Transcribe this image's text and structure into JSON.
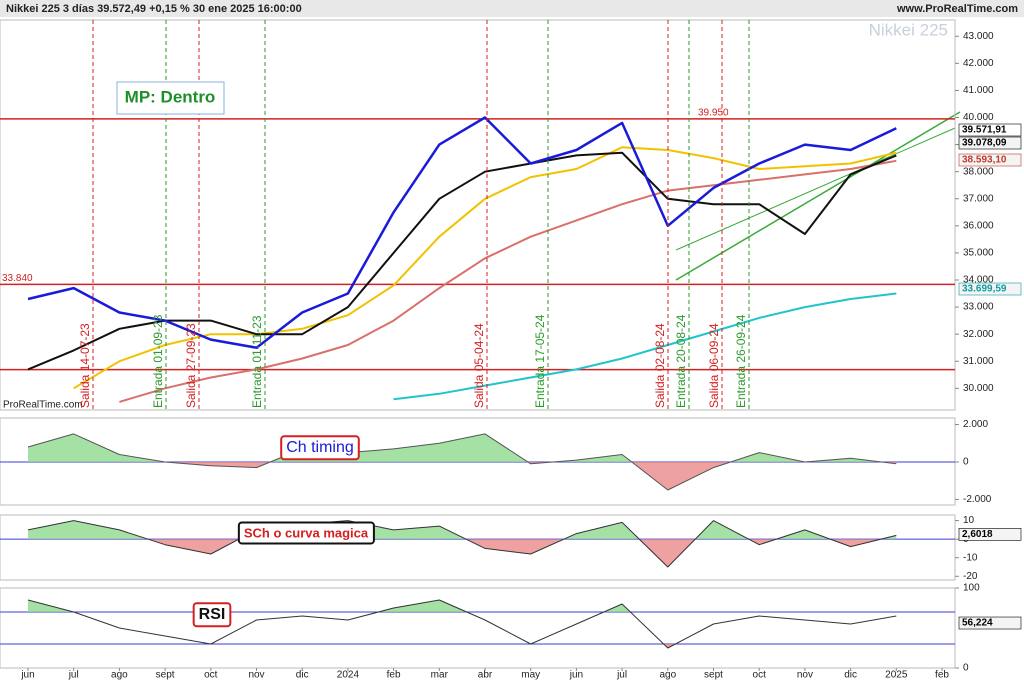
{
  "header": {
    "title": "Nikkei 225 3 días 39.572,49 +0,15 % 30 ene 2025 16:00:00",
    "site": "www.ProRealTime.com"
  },
  "watermark": "Nikkei 225",
  "brand": "ProRealTime.com",
  "status_box": "MP: Dentro",
  "chart_data": [
    {
      "type": "line",
      "categories": [
        "jun",
        "jul",
        "ago",
        "sept",
        "oct",
        "nov",
        "dic",
        "2024",
        "feb",
        "mar",
        "abr",
        "may",
        "jun",
        "jul",
        "ago",
        "sept",
        "oct",
        "nov",
        "dic",
        "2025",
        "feb"
      ],
      "ylim": [
        29200,
        43600
      ],
      "yticks": [
        {
          "value": 30000,
          "label": "30.000"
        },
        {
          "value": 31000,
          "label": "31.000"
        },
        {
          "value": 32000,
          "label": "32.000"
        },
        {
          "value": 33000,
          "label": "33.000"
        },
        {
          "value": 34000,
          "label": "34.000"
        },
        {
          "value": 35000,
          "label": "35.000"
        },
        {
          "value": 36000,
          "label": "36.000"
        },
        {
          "value": 37000,
          "label": "37.000"
        },
        {
          "value": 38000,
          "label": "38.000"
        },
        {
          "value": 39000,
          "label": "39.000"
        },
        {
          "value": 40000,
          "label": "40.000"
        },
        {
          "value": 41000,
          "label": "41.000"
        },
        {
          "value": 42000,
          "label": "42.000"
        },
        {
          "value": 43000,
          "label": "43.000"
        }
      ],
      "series": [
        {
          "color": "#20c4cc",
          "values": [
            null,
            null,
            null,
            null,
            null,
            null,
            null,
            null,
            29600,
            29800,
            30100,
            30400,
            30700,
            31100,
            31600,
            32100,
            32600,
            33000,
            33300,
            33500,
            null
          ]
        },
        {
          "color": "#d9706a",
          "values": [
            null,
            null,
            29500,
            30000,
            30400,
            30700,
            31100,
            31600,
            32500,
            33700,
            34800,
            35600,
            36200,
            36800,
            37300,
            37500,
            37700,
            37900,
            38100,
            38400,
            null
          ]
        },
        {
          "color": "#f2c200",
          "values": [
            null,
            30000,
            31000,
            31600,
            32000,
            32000,
            32200,
            32700,
            33800,
            35600,
            37000,
            37800,
            38100,
            38900,
            38800,
            38500,
            38100,
            38200,
            38300,
            38700,
            null
          ]
        },
        {
          "color": "#111111",
          "values": [
            30700,
            31400,
            32200,
            32500,
            32500,
            32000,
            32000,
            33000,
            35000,
            37000,
            38000,
            38300,
            38600,
            38700,
            37000,
            36800,
            36800,
            35700,
            37900,
            38600,
            null
          ]
        },
        {
          "color": "#1a1adb",
          "values": [
            33300,
            33700,
            32800,
            32500,
            31800,
            31500,
            32800,
            33500,
            36500,
            39000,
            40000,
            38300,
            38800,
            39800,
            36000,
            37400,
            38300,
            39000,
            38800,
            39600,
            null
          ]
        }
      ],
      "levels": [
        {
          "value": 39950,
          "label": "39.950",
          "color": "#d42020"
        },
        {
          "value": 33840,
          "label": "33.840",
          "color": "#d42020"
        },
        {
          "value": 30690,
          "color": "#d42020"
        }
      ],
      "last_values": [
        {
          "value": 39571.91,
          "label": "39.571,91",
          "color": "#000000"
        },
        {
          "value": 39078.09,
          "label": "39.078,09",
          "color": "#000000"
        },
        {
          "value": 38593.1,
          "label": "38.593,10",
          "color": "#c0392b"
        },
        {
          "value": 33699.59,
          "label": "33.699,59",
          "color": "#109aa0"
        }
      ],
      "annotations": [
        {
          "label": "Salida 14-07-23",
          "color": "#d42020"
        },
        {
          "label": "Entrada 01-09-23",
          "color": "#2a9a2a"
        },
        {
          "label": "Salida 27-09-23",
          "color": "#d42020"
        },
        {
          "label": "Entrada 01-11-23",
          "color": "#2a9a2a"
        },
        {
          "label": "Salida 05-04-24",
          "color": "#d42020"
        },
        {
          "label": "Entrada 17-05-24",
          "color": "#2a9a2a"
        },
        {
          "label": "Salida 02-08-24",
          "color": "#d42020"
        },
        {
          "label": "Entrada 20-08-24",
          "color": "#2a9a2a"
        },
        {
          "label": "Salida 06-09-24",
          "color": "#d42020"
        },
        {
          "label": "Entrada 26-09-24",
          "color": "#2a9a2a"
        }
      ]
    },
    {
      "type": "area",
      "label": "Ch timing",
      "label_color": "#1a1adb",
      "box_color": "#d42020",
      "ylim": [
        -2300,
        2350
      ],
      "yticks": [
        {
          "value": -2000,
          "label": "-2.000"
        },
        0,
        {
          "value": 2000,
          "label": "2.000"
        }
      ],
      "levels": [
        {
          "value": 0,
          "color": "#3b3bd6"
        }
      ],
      "series": [
        {
          "color": "#555555",
          "values": [
            800,
            1500,
            400,
            0,
            -200,
            -300,
            700,
            500,
            700,
            1000,
            1500,
            -100,
            100,
            400,
            -1500,
            -300,
            500,
            0,
            200,
            -100,
            null
          ]
        }
      ]
    },
    {
      "type": "area",
      "label": "SCh o curva magica",
      "label_color": "#d42020",
      "box_color": "#111111",
      "ylim": [
        -22,
        13
      ],
      "yticks": [
        -20,
        -10,
        0,
        10
      ],
      "levels": [
        {
          "value": 0,
          "color": "#3b3bd6"
        }
      ],
      "last_values": [
        {
          "value": 2.6018,
          "label": "2,6018",
          "color": "#000000"
        }
      ],
      "series": [
        {
          "color": "#333333",
          "values": [
            5,
            10,
            5,
            -3,
            -8,
            5,
            8,
            10,
            5,
            7,
            -5,
            -8,
            3,
            9,
            -15,
            10,
            -3,
            5,
            -4,
            2,
            null
          ]
        }
      ]
    },
    {
      "type": "rsi",
      "label": "RSI",
      "label_color": "#111111",
      "box_color": "#d42020",
      "ylim": [
        0,
        100
      ],
      "yticks": [
        0,
        100
      ],
      "levels": [
        {
          "value": 30,
          "color": "#3b3bd6"
        },
        {
          "value": 70,
          "color": "#3b3bd6"
        }
      ],
      "last_values": [
        {
          "value": 56.224,
          "label": "56,224",
          "color": "#000000"
        }
      ],
      "series": [
        {
          "color": "#333333",
          "values": [
            85,
            70,
            50,
            40,
            30,
            60,
            65,
            60,
            75,
            85,
            60,
            30,
            55,
            80,
            25,
            55,
            65,
            60,
            55,
            65,
            null
          ]
        }
      ]
    }
  ]
}
